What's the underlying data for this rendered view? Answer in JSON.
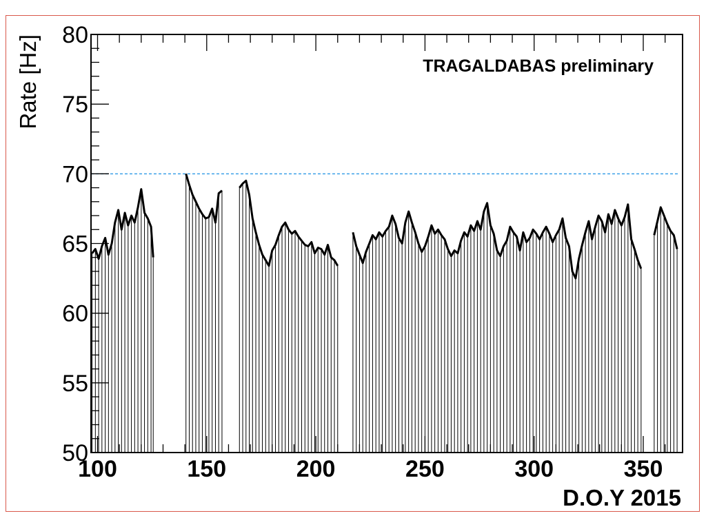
{
  "chart_data": {
    "type": "line",
    "annotation": "TRAGALDABAS preliminary",
    "xlabel": "D.O.Y 2015",
    "ylabel": "Rate [Hz]",
    "xlim": [
      97,
      368
    ],
    "ylim": [
      50,
      80
    ],
    "x_ticks": [
      100,
      150,
      200,
      250,
      300,
      350
    ],
    "y_ticks": [
      50,
      55,
      60,
      65,
      70,
      75,
      80
    ],
    "reference_line": {
      "y": 70,
      "x_range": [
        97,
        366
      ],
      "style": "dashed",
      "color": "#3aa0e8"
    },
    "colors": {
      "series": "#000000",
      "axes": "#000000",
      "frame": "#d9574a"
    },
    "grid": false,
    "series": [
      {
        "points": [
          [
            97.5,
            64.3
          ],
          [
            99,
            64.6
          ],
          [
            100.5,
            63.9
          ],
          [
            102,
            64.8
          ],
          [
            103.5,
            65.4
          ],
          [
            105,
            64.2
          ],
          [
            106.5,
            65.0
          ],
          [
            108,
            66.5
          ],
          [
            109.5,
            67.4
          ],
          [
            111,
            66.0
          ],
          [
            112.5,
            67.2
          ],
          [
            114,
            66.3
          ],
          [
            115.5,
            67.0
          ],
          [
            117,
            66.5
          ],
          [
            118.5,
            67.6
          ],
          [
            120,
            68.9
          ],
          [
            121.5,
            67.2
          ],
          [
            123,
            66.8
          ],
          [
            124.5,
            66.2
          ],
          [
            125.5,
            64.0
          ],
          [
            140.5,
            70.0
          ],
          [
            142,
            69.2
          ],
          [
            143.5,
            68.5
          ],
          [
            145,
            68.0
          ],
          [
            146.5,
            67.5
          ],
          [
            148,
            67.1
          ],
          [
            149.5,
            66.8
          ],
          [
            151,
            66.9
          ],
          [
            152.5,
            67.5
          ],
          [
            154,
            66.5
          ],
          [
            155.5,
            68.6
          ],
          [
            157,
            68.8
          ],
          [
            165,
            69.0
          ],
          [
            166.5,
            69.3
          ],
          [
            168,
            69.5
          ],
          [
            169.5,
            68.5
          ],
          [
            171,
            66.8
          ],
          [
            172.5,
            65.8
          ],
          [
            174,
            64.9
          ],
          [
            175.5,
            64.2
          ],
          [
            177,
            63.8
          ],
          [
            178.5,
            63.4
          ],
          [
            180,
            64.5
          ],
          [
            181.5,
            64.9
          ],
          [
            183,
            65.6
          ],
          [
            184.5,
            66.2
          ],
          [
            186,
            66.5
          ],
          [
            187.5,
            66.0
          ],
          [
            189,
            65.7
          ],
          [
            190.5,
            65.9
          ],
          [
            192,
            65.5
          ],
          [
            193.5,
            65.2
          ],
          [
            195,
            64.9
          ],
          [
            196.5,
            64.8
          ],
          [
            198,
            65.1
          ],
          [
            199.5,
            64.3
          ],
          [
            201,
            64.7
          ],
          [
            202.5,
            64.6
          ],
          [
            204,
            64.2
          ],
          [
            205.5,
            64.9
          ],
          [
            207,
            64.0
          ],
          [
            208.5,
            63.8
          ],
          [
            210,
            63.4
          ],
          [
            217,
            65.8
          ],
          [
            218.5,
            64.8
          ],
          [
            220,
            64.2
          ],
          [
            221.5,
            63.6
          ],
          [
            223,
            64.4
          ],
          [
            224.5,
            65.0
          ],
          [
            226,
            65.6
          ],
          [
            227.5,
            65.3
          ],
          [
            229,
            65.8
          ],
          [
            230.5,
            65.5
          ],
          [
            232,
            65.9
          ],
          [
            233.5,
            66.2
          ],
          [
            235,
            67.0
          ],
          [
            236.5,
            66.4
          ],
          [
            238,
            65.4
          ],
          [
            239.5,
            65.0
          ],
          [
            241,
            66.5
          ],
          [
            242.5,
            67.3
          ],
          [
            244,
            66.5
          ],
          [
            245.5,
            65.8
          ],
          [
            247,
            65.0
          ],
          [
            248.5,
            64.4
          ],
          [
            250,
            64.8
          ],
          [
            251.5,
            65.5
          ],
          [
            253,
            66.3
          ],
          [
            254.5,
            65.7
          ],
          [
            256,
            66.0
          ],
          [
            257.5,
            65.6
          ],
          [
            259,
            65.3
          ],
          [
            260.5,
            64.6
          ],
          [
            262,
            64.1
          ],
          [
            263.5,
            64.5
          ],
          [
            265,
            64.3
          ],
          [
            266.5,
            65.2
          ],
          [
            268,
            65.8
          ],
          [
            269.5,
            65.5
          ],
          [
            271,
            66.3
          ],
          [
            272.5,
            65.9
          ],
          [
            274,
            66.6
          ],
          [
            275.5,
            66.0
          ],
          [
            277,
            67.3
          ],
          [
            278.5,
            67.9
          ],
          [
            280,
            66.3
          ],
          [
            281.5,
            65.7
          ],
          [
            283,
            64.5
          ],
          [
            284.5,
            64.1
          ],
          [
            286,
            64.8
          ],
          [
            287.5,
            65.2
          ],
          [
            289,
            66.2
          ],
          [
            290.5,
            65.8
          ],
          [
            292,
            65.5
          ],
          [
            293.5,
            64.5
          ],
          [
            295,
            65.8
          ],
          [
            296.5,
            65.1
          ],
          [
            298,
            65.4
          ],
          [
            299.5,
            66.0
          ],
          [
            301,
            65.7
          ],
          [
            302.5,
            65.3
          ],
          [
            304,
            65.8
          ],
          [
            305.5,
            66.2
          ],
          [
            307,
            65.7
          ],
          [
            308.5,
            65.1
          ],
          [
            310,
            65.6
          ],
          [
            311.5,
            66.0
          ],
          [
            313,
            66.8
          ],
          [
            314.5,
            65.4
          ],
          [
            316,
            64.8
          ],
          [
            317.5,
            63.0
          ],
          [
            319,
            62.5
          ],
          [
            320.5,
            63.9
          ],
          [
            322,
            64.9
          ],
          [
            323.5,
            65.8
          ],
          [
            325,
            66.6
          ],
          [
            326.5,
            65.3
          ],
          [
            328,
            66.2
          ],
          [
            329.5,
            67.0
          ],
          [
            331,
            66.6
          ],
          [
            332.5,
            65.8
          ],
          [
            334,
            67.1
          ],
          [
            335.5,
            66.4
          ],
          [
            337,
            67.4
          ],
          [
            338.5,
            66.8
          ],
          [
            340,
            66.3
          ],
          [
            341.5,
            66.9
          ],
          [
            343,
            67.8
          ],
          [
            344.5,
            65.3
          ],
          [
            346,
            64.6
          ],
          [
            347.5,
            63.8
          ],
          [
            349,
            63.2
          ],
          [
            355,
            65.6
          ],
          [
            356.5,
            66.6
          ],
          [
            358,
            67.6
          ],
          [
            359.5,
            67.0
          ],
          [
            361,
            66.4
          ],
          [
            362.5,
            65.9
          ],
          [
            364,
            65.6
          ],
          [
            365.5,
            64.6
          ]
        ]
      }
    ]
  }
}
